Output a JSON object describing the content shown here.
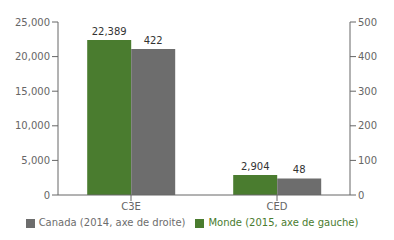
{
  "chart_data": {
    "type": "bar",
    "categories": [
      "C3E",
      "CED"
    ],
    "series": [
      {
        "name": "Monde (2015, axe de gauche)",
        "color": "#4a7c2f",
        "values": [
          22389,
          2904
        ],
        "value_labels": [
          "22,389",
          "2,904"
        ]
      },
      {
        "name": "Canada (2014, axe de droite)",
        "color": "#6d6d6d",
        "values": [
          422,
          48
        ],
        "axis": "y2"
      }
    ],
    "ylim": [
      0,
      25000
    ],
    "yticks": [
      0,
      {
        "value": 5000,
        "label": "5,000"
      },
      {
        "value": 10000,
        "label": "10,000"
      },
      {
        "value": 15000,
        "label": "15,000"
      },
      {
        "value": 20000,
        "label": "20,000"
      },
      {
        "value": 25000,
        "label": "25,000"
      }
    ],
    "y2lim": [
      0,
      500
    ],
    "y2ticks": [
      0,
      100,
      200,
      300,
      400,
      500
    ],
    "data_labels": true,
    "legend": "bottom"
  }
}
